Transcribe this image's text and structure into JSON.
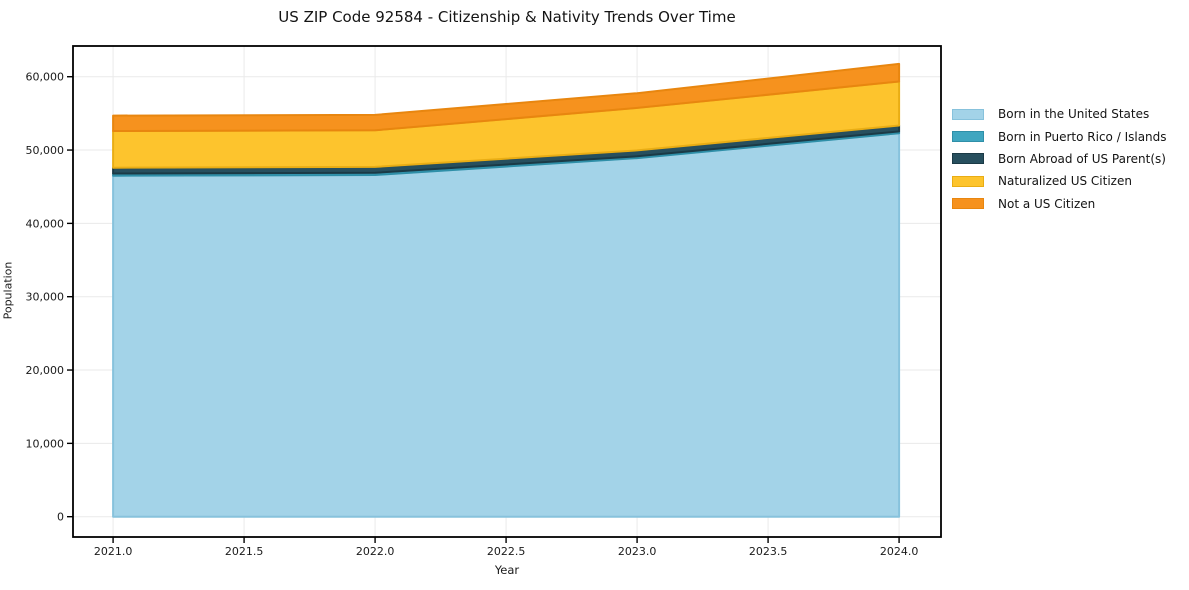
{
  "chart_data": {
    "type": "area",
    "stacked": true,
    "title": "US ZIP Code 92584 - Citizenship & Nativity Trends Over Time",
    "xlabel": "Year",
    "ylabel": "Population",
    "x": [
      2021,
      2022,
      2023,
      2024
    ],
    "series": [
      {
        "name": "Born in the United States",
        "color": "#a3d3e8",
        "edge": "#87c2dc",
        "values": [
          46500,
          46600,
          48900,
          52300
        ]
      },
      {
        "name": "Born in Puerto Rico / Islands",
        "color": "#3fa6c0",
        "edge": "#2f8fa8",
        "values": [
          300,
          300,
          250,
          250
        ]
      },
      {
        "name": "Born Abroad of US Parent(s)",
        "color": "#274f5e",
        "edge": "#1b3a46",
        "values": [
          800,
          800,
          800,
          800
        ]
      },
      {
        "name": "Naturalized US Citizen",
        "color": "#fdc42d",
        "edge": "#e9ad14",
        "values": [
          5000,
          5000,
          5800,
          6000
        ]
      },
      {
        "name": "Not a US Citizen",
        "color": "#f6921e",
        "edge": "#e8860f",
        "values": [
          2100,
          2100,
          2000,
          2400
        ]
      }
    ],
    "totals": [
      54700,
      54800,
      57750,
      61750
    ],
    "x_tick_values": [
      2021.0,
      2021.5,
      2022.0,
      2022.5,
      2023.0,
      2023.5,
      2024.0
    ],
    "x_tick_labels": [
      "2021.0",
      "2021.5",
      "2022.0",
      "2022.5",
      "2023.0",
      "2023.5",
      "2024.0"
    ],
    "y_tick_values": [
      0,
      10000,
      20000,
      30000,
      40000,
      50000,
      60000
    ],
    "y_tick_labels": [
      "0",
      "10,000",
      "20,000",
      "30,000",
      "40,000",
      "50,000",
      "60,000"
    ],
    "x_range": [
      2020.847,
      2024.16
    ],
    "y_range": [
      -2770,
      64190
    ],
    "grid": true,
    "grid_color": "#eaeaea",
    "legend_position": "right outside"
  }
}
